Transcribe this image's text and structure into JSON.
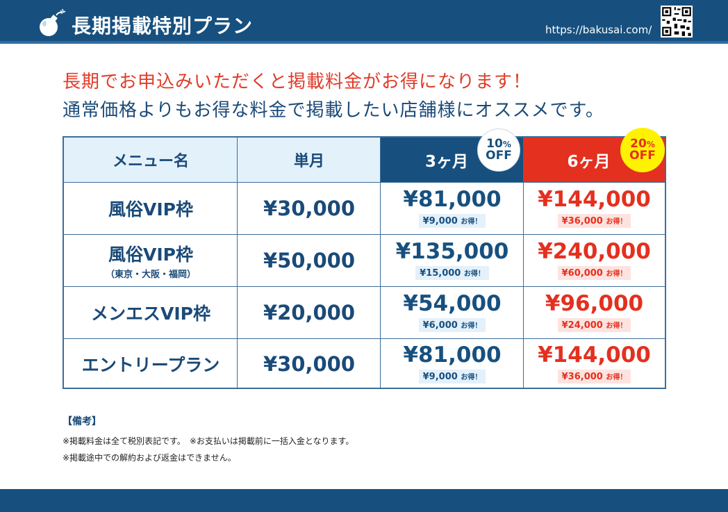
{
  "header": {
    "title": "長期掲載特別プラン",
    "url": "https://bakusai.com/"
  },
  "lead": {
    "line1": "長期でお申込みいただくと掲載料金がお得になります！",
    "line2": "通常価格よりもお得な料金で掲載したい店舗様にオススメです。"
  },
  "table": {
    "headers": {
      "menu": "メニュー名",
      "single": "単月",
      "three": "3ヶ月",
      "six": "6ヶ月"
    },
    "badges": {
      "three": {
        "pct": "10",
        "unit": "%",
        "off": "OFF"
      },
      "six": {
        "pct": "20",
        "unit": "%",
        "off": "OFF"
      }
    },
    "rows": [
      {
        "name": "風俗VIP枠",
        "sub": "",
        "single": "¥30,000",
        "three": "¥81,000",
        "three_save": "¥9,000",
        "six": "¥144,000",
        "six_save": "¥36,000"
      },
      {
        "name": "風俗VIP枠",
        "sub": "（東京・大阪・福岡）",
        "single": "¥50,000",
        "three": "¥135,000",
        "three_save": "¥15,000",
        "six": "¥240,000",
        "six_save": "¥60,000"
      },
      {
        "name": "メンエスVIP枠",
        "sub": "",
        "single": "¥20,000",
        "three": "¥54,000",
        "three_save": "¥6,000",
        "six": "¥96,000",
        "six_save": "¥24,000"
      },
      {
        "name": "エントリープラン",
        "sub": "",
        "single": "¥30,000",
        "three": "¥81,000",
        "three_save": "¥9,000",
        "six": "¥144,000",
        "six_save": "¥36,000"
      }
    ],
    "save_suffix": "お得！"
  },
  "remarks": {
    "title": "【備考】",
    "note1": "※掲載料金は全て税別表記です。　※お支払いは掲載前に一括入金となります。",
    "note2": "※掲載途中での解約および返金はできません。"
  },
  "colors": {
    "navy": "#17507f",
    "red": "#e4301f",
    "yellow": "#fff200"
  },
  "icons": {
    "logo": "bomb-icon",
    "qr": "qr-code-icon"
  }
}
